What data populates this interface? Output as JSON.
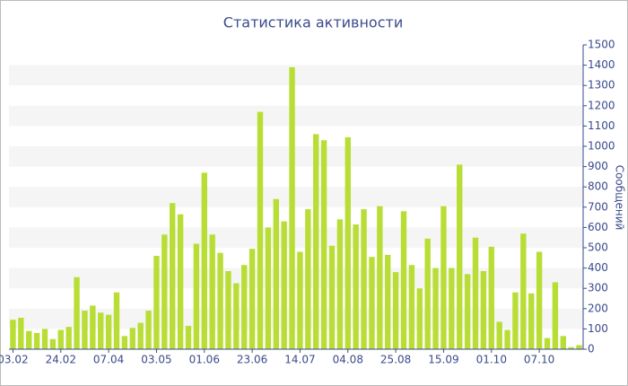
{
  "chart_data": {
    "type": "bar",
    "title": "Статистика активности",
    "y_label": "Сообщений",
    "categories": [
      "03.02",
      null,
      null,
      null,
      null,
      null,
      "24.02",
      null,
      null,
      null,
      null,
      null,
      "07.04",
      null,
      null,
      null,
      null,
      null,
      "03.05",
      null,
      null,
      null,
      null,
      null,
      "01.06",
      null,
      null,
      null,
      null,
      null,
      "23.06",
      null,
      null,
      null,
      null,
      null,
      "14.07",
      null,
      null,
      null,
      null,
      null,
      "04.08",
      null,
      null,
      null,
      null,
      null,
      "25.08",
      null,
      null,
      null,
      null,
      null,
      "15.09",
      null,
      null,
      null,
      null,
      null,
      "01.10",
      null,
      null,
      null,
      null,
      null,
      "07.10",
      null,
      null,
      null,
      null,
      null
    ],
    "values": [
      145,
      155,
      90,
      80,
      100,
      50,
      95,
      110,
      355,
      190,
      215,
      180,
      170,
      280,
      65,
      105,
      130,
      190,
      460,
      565,
      720,
      665,
      115,
      520,
      870,
      565,
      475,
      385,
      325,
      415,
      495,
      1170,
      600,
      740,
      630,
      1390,
      480,
      690,
      1060,
      1030,
      510,
      640,
      1045,
      615,
      690,
      455,
      705,
      465,
      380,
      680,
      415,
      300,
      545,
      400,
      705,
      400,
      910,
      370,
      550,
      385,
      505,
      135,
      95,
      280,
      570,
      275,
      480,
      55,
      330,
      65,
      10,
      20
    ],
    "color": "#b8de36",
    "ylim": [
      0,
      1500
    ],
    "yticks": [
      0,
      100,
      200,
      300,
      400,
      500,
      600,
      700,
      800,
      900,
      1000,
      1100,
      1200,
      1300,
      1400,
      1500
    ],
    "grid": true
  }
}
